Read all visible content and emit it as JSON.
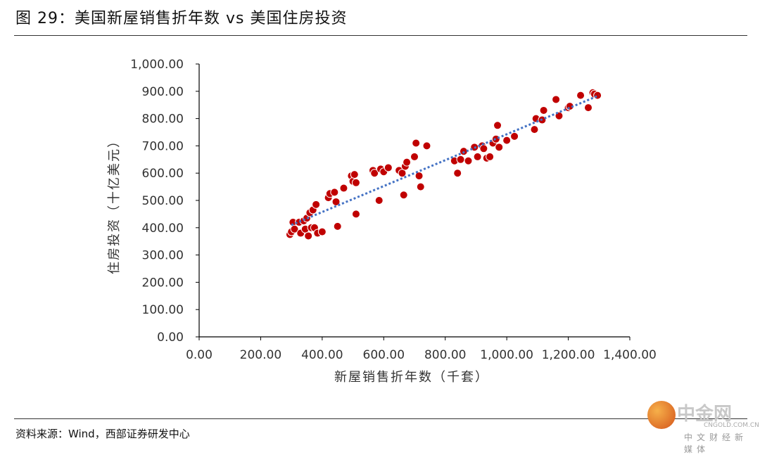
{
  "header": {
    "title": "图 29：美国新屋销售折年数 vs 美国住房投资"
  },
  "footer": {
    "source": "资料来源：Wind，西部证券研发中心"
  },
  "watermark": {
    "name": "中金网",
    "url": "CNGOLD.COM.CN",
    "subtitle": "中文财经新媒体"
  },
  "colors": {
    "points": "#C00000",
    "trend": "#4472C4",
    "axis": "#000000"
  },
  "chart_data": {
    "type": "scatter",
    "xlabel": "新屋销售折年数（千套）",
    "ylabel": "住房投资（十亿美元）",
    "xlim": [
      0,
      1400
    ],
    "ylim": [
      0,
      1000
    ],
    "x_ticks": [
      "0.00",
      "200.00",
      "400.00",
      "600.00",
      "800.00",
      "1,000.00",
      "1,200.00",
      "1,400.00"
    ],
    "y_ticks": [
      "0.00",
      "100.00",
      "200.00",
      "300.00",
      "400.00",
      "500.00",
      "600.00",
      "700.00",
      "800.00",
      "900.00",
      "1,000.00"
    ],
    "grid": false,
    "trendline": {
      "style": "dotted",
      "x": [
        300,
        1300
      ],
      "y": [
        410,
        885
      ]
    },
    "series": [
      {
        "points": [
          [
            295,
            375
          ],
          [
            300,
            385
          ],
          [
            305,
            420
          ],
          [
            310,
            395
          ],
          [
            325,
            420
          ],
          [
            330,
            380
          ],
          [
            340,
            425
          ],
          [
            345,
            395
          ],
          [
            350,
            435
          ],
          [
            355,
            370
          ],
          [
            360,
            455
          ],
          [
            365,
            400
          ],
          [
            370,
            465
          ],
          [
            375,
            400
          ],
          [
            380,
            485
          ],
          [
            385,
            380
          ],
          [
            400,
            385
          ],
          [
            420,
            510
          ],
          [
            425,
            525
          ],
          [
            440,
            530
          ],
          [
            445,
            495
          ],
          [
            450,
            405
          ],
          [
            470,
            545
          ],
          [
            495,
            590
          ],
          [
            500,
            570
          ],
          [
            505,
            595
          ],
          [
            510,
            565
          ],
          [
            510,
            450
          ],
          [
            565,
            610
          ],
          [
            570,
            600
          ],
          [
            585,
            500
          ],
          [
            590,
            615
          ],
          [
            600,
            605
          ],
          [
            615,
            620
          ],
          [
            650,
            610
          ],
          [
            660,
            600
          ],
          [
            665,
            520
          ],
          [
            670,
            625
          ],
          [
            675,
            640
          ],
          [
            700,
            660
          ],
          [
            705,
            710
          ],
          [
            715,
            590
          ],
          [
            720,
            550
          ],
          [
            740,
            700
          ],
          [
            830,
            645
          ],
          [
            840,
            600
          ],
          [
            850,
            650
          ],
          [
            860,
            680
          ],
          [
            875,
            645
          ],
          [
            895,
            695
          ],
          [
            905,
            660
          ],
          [
            920,
            700
          ],
          [
            925,
            690
          ],
          [
            935,
            655
          ],
          [
            945,
            660
          ],
          [
            955,
            710
          ],
          [
            965,
            725
          ],
          [
            970,
            775
          ],
          [
            975,
            695
          ],
          [
            1000,
            720
          ],
          [
            1025,
            735
          ],
          [
            1090,
            760
          ],
          [
            1095,
            800
          ],
          [
            1115,
            795
          ],
          [
            1120,
            830
          ],
          [
            1160,
            870
          ],
          [
            1170,
            810
          ],
          [
            1200,
            840
          ],
          [
            1205,
            845
          ],
          [
            1240,
            885
          ],
          [
            1265,
            840
          ],
          [
            1280,
            895
          ],
          [
            1285,
            890
          ],
          [
            1295,
            885
          ]
        ]
      }
    ]
  }
}
